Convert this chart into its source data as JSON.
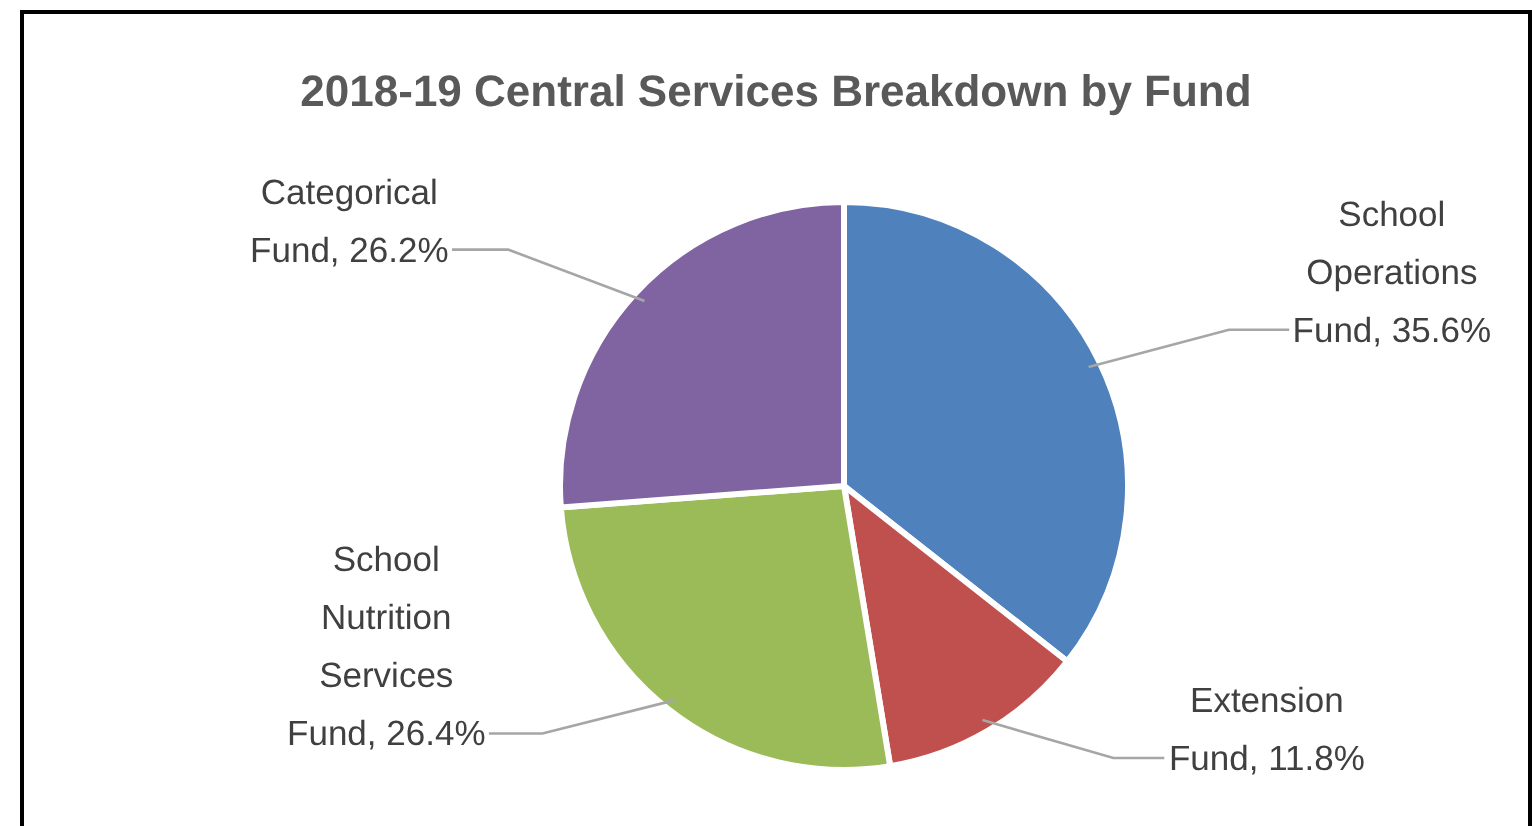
{
  "chart_data": {
    "type": "pie",
    "title": "2018-19 Central Services Breakdown by Fund",
    "categories": [
      "School Operations Fund",
      "Extension Fund",
      "School Nutrition Services Fund",
      "Categorical Fund"
    ],
    "values": [
      35.6,
      11.8,
      26.4,
      26.2
    ],
    "colors": [
      "#4f81bd",
      "#c0504d",
      "#9bbb59",
      "#8064a2"
    ],
    "value_labels": [
      "35.6%",
      "11.8%",
      "26.4%",
      "26.2%"
    ]
  }
}
